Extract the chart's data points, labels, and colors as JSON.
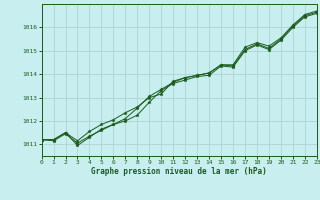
{
  "title": "Graphe pression niveau de la mer (hPa)",
  "bg_color": "#c8eef0",
  "grid_color": "#a8cece",
  "line_color": "#1a5c1a",
  "x_min": 0,
  "x_max": 23,
  "y_min": 1010.5,
  "y_max": 1017.0,
  "yticks": [
    1011,
    1012,
    1013,
    1014,
    1015,
    1016
  ],
  "xticks": [
    0,
    1,
    2,
    3,
    4,
    5,
    6,
    7,
    8,
    9,
    10,
    11,
    12,
    13,
    14,
    15,
    16,
    17,
    18,
    19,
    20,
    21,
    22,
    23
  ],
  "series1": [
    1011.2,
    1011.2,
    1011.5,
    1011.15,
    1011.55,
    1011.85,
    1012.05,
    1012.35,
    1012.6,
    1013.0,
    1013.15,
    1013.7,
    1013.85,
    1013.95,
    1014.05,
    1014.4,
    1014.35,
    1015.05,
    1015.3,
    1015.1,
    1015.5,
    1016.05,
    1016.5,
    1016.65
  ],
  "series2": [
    1011.2,
    1011.2,
    1011.5,
    1010.95,
    1011.3,
    1011.65,
    1011.85,
    1012.1,
    1012.55,
    1013.05,
    1013.35,
    1013.65,
    1013.85,
    1013.95,
    1014.05,
    1014.4,
    1014.4,
    1015.15,
    1015.35,
    1015.2,
    1015.55,
    1016.1,
    1016.55,
    1016.7
  ],
  "series3": [
    1011.2,
    1011.15,
    1011.45,
    1011.05,
    1011.35,
    1011.6,
    1011.85,
    1012.0,
    1012.25,
    1012.8,
    1013.3,
    1013.6,
    1013.75,
    1013.9,
    1013.95,
    1014.35,
    1014.3,
    1015.0,
    1015.25,
    1015.05,
    1015.45,
    1016.0,
    1016.45,
    1016.6
  ]
}
